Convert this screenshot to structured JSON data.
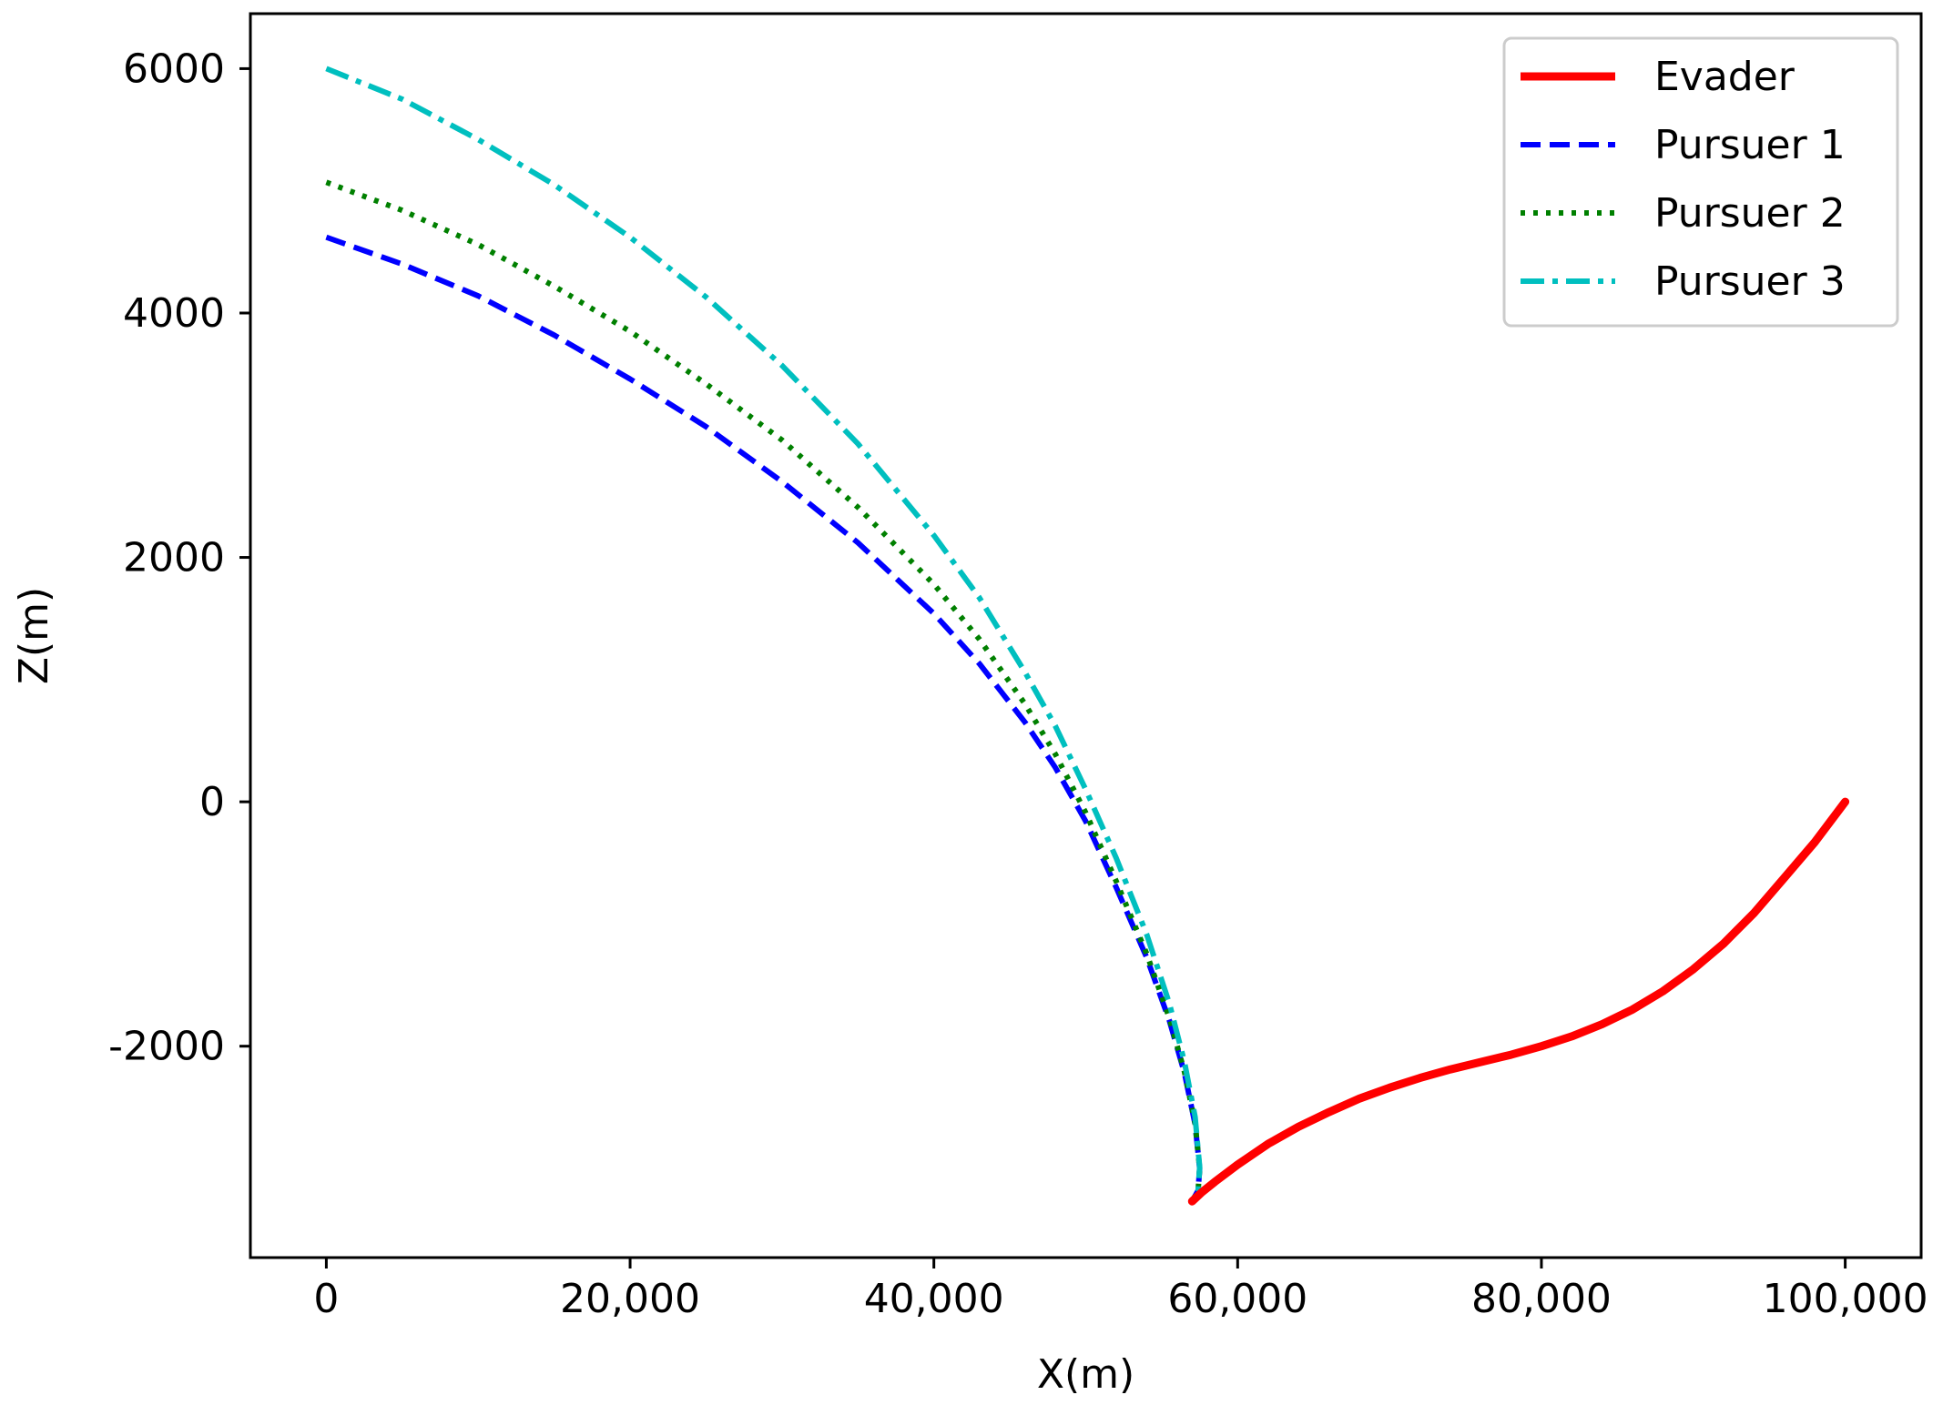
{
  "chart_data": {
    "type": "line",
    "title": "",
    "xlabel": "X(m)",
    "ylabel": "Z(m)",
    "xlim": [
      -5000,
      105000
    ],
    "ylim": [
      -3730,
      6450
    ],
    "xticks": [
      0,
      20000,
      40000,
      60000,
      80000,
      100000
    ],
    "xtick_labels": [
      "0",
      "20,000",
      "40,000",
      "60,000",
      "80,000",
      "100,000"
    ],
    "yticks": [
      -2000,
      0,
      2000,
      4000,
      6000
    ],
    "ytick_labels": [
      "-2000",
      "0",
      "2000",
      "4000",
      "6000"
    ],
    "grid": false,
    "legend_position": "top-right",
    "series": [
      {
        "name": "Evader",
        "color": "#ff0000",
        "style": "solid",
        "x": [
          100000,
          98000,
          96000,
          94000,
          92000,
          90000,
          88000,
          86000,
          84000,
          82000,
          80000,
          78000,
          76000,
          74000,
          72000,
          70000,
          68000,
          66000,
          64000,
          62000,
          60000,
          58500,
          57600,
          57000
        ],
        "y": [
          0,
          -330,
          -620,
          -910,
          -1160,
          -1370,
          -1550,
          -1700,
          -1820,
          -1920,
          -2000,
          -2070,
          -2130,
          -2190,
          -2260,
          -2340,
          -2430,
          -2540,
          -2660,
          -2800,
          -2970,
          -3110,
          -3200,
          -3270
        ]
      },
      {
        "name": "Pursuer 1",
        "color": "#0000ff",
        "style": "dashed",
        "x": [
          0,
          5000,
          10000,
          15000,
          20000,
          25000,
          30000,
          35000,
          40000,
          43000,
          46000,
          48000,
          50000,
          52000,
          54000,
          55500,
          56500,
          57200,
          57500,
          57400,
          57000
        ],
        "y": [
          4620,
          4400,
          4140,
          3820,
          3460,
          3070,
          2620,
          2120,
          1540,
          1130,
          650,
          280,
          -160,
          -700,
          -1270,
          -1790,
          -2220,
          -2640,
          -3000,
          -3180,
          -3270
        ]
      },
      {
        "name": "Pursuer 2",
        "color": "#008000",
        "style": "dotted",
        "x": [
          0,
          5000,
          10000,
          15000,
          20000,
          25000,
          30000,
          35000,
          40000,
          43000,
          46000,
          48000,
          50000,
          52000,
          54000,
          55500,
          56500,
          57200,
          57500,
          57400,
          57000
        ],
        "y": [
          5070,
          4840,
          4560,
          4220,
          3850,
          3420,
          2960,
          2410,
          1780,
          1330,
          800,
          390,
          -90,
          -650,
          -1240,
          -1770,
          -2210,
          -2630,
          -3000,
          -3180,
          -3270
        ]
      },
      {
        "name": "Pursuer 3",
        "color": "#00bfbf",
        "style": "dashdot",
        "x": [
          0,
          5000,
          10000,
          15000,
          20000,
          25000,
          30000,
          35000,
          40000,
          43000,
          46000,
          48000,
          50000,
          52000,
          54000,
          55500,
          56500,
          57200,
          57500,
          57400,
          57000
        ],
        "y": [
          6000,
          5750,
          5420,
          5050,
          4620,
          4130,
          3570,
          2930,
          2180,
          1670,
          1060,
          620,
          100,
          -460,
          -1080,
          -1650,
          -2130,
          -2580,
          -2990,
          -3180,
          -3270
        ]
      }
    ]
  }
}
